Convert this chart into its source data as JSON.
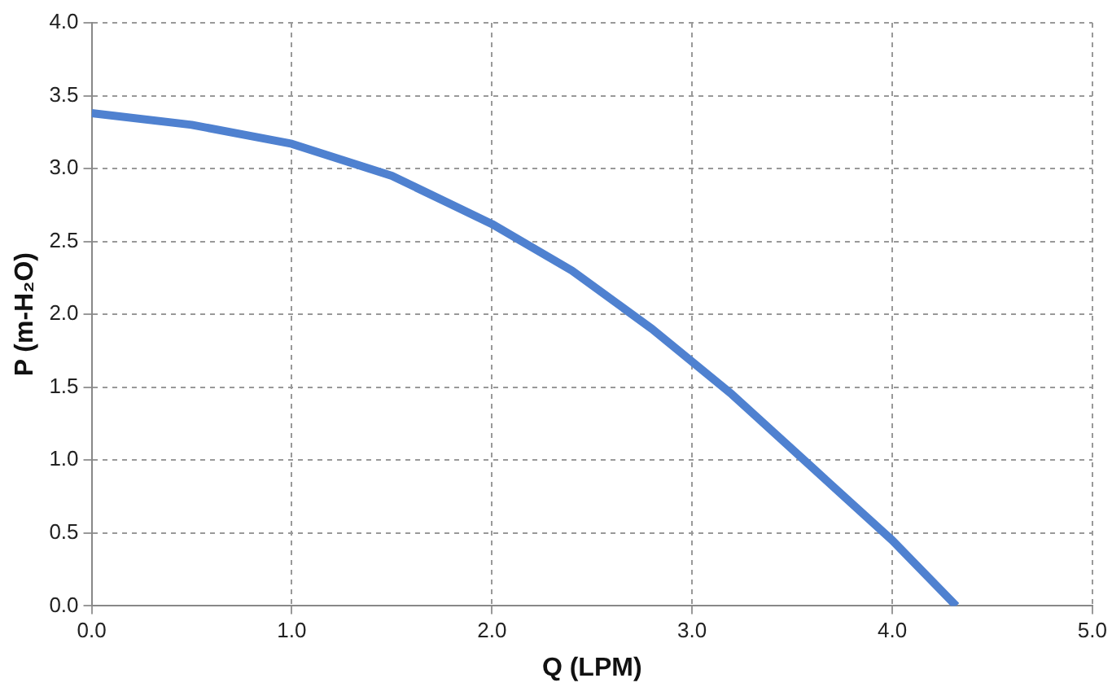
{
  "chart_data": {
    "type": "line",
    "xlabel": "Q (LPM)",
    "ylabel": "P (m-H₂O)",
    "x": [
      0,
      0.5,
      1.0,
      1.5,
      2.0,
      2.4,
      2.8,
      3.2,
      3.6,
      4.0,
      4.32
    ],
    "series": [
      {
        "color": "#4f81d0",
        "values": [
          3.38,
          3.3,
          3.17,
          2.95,
          2.62,
          2.3,
          1.9,
          1.45,
          0.95,
          0.45,
          0
        ]
      }
    ],
    "xlim": [
      0,
      5
    ],
    "xticks": [
      {
        "value": 0,
        "label": "0.0"
      },
      {
        "value": 1,
        "label": "1.0"
      },
      {
        "value": 2,
        "label": "2.0"
      },
      {
        "value": 3,
        "label": "3.0"
      },
      {
        "value": 4,
        "label": "4.0"
      },
      {
        "value": 5,
        "label": "5.0"
      }
    ],
    "ylim": [
      0,
      4
    ],
    "yticks": [
      {
        "value": 0,
        "label": "0.0"
      },
      {
        "value": 0.5,
        "label": "0.5"
      },
      {
        "value": 1,
        "label": "1.0"
      },
      {
        "value": 1.5,
        "label": "1.5"
      },
      {
        "value": 2,
        "label": "2.0"
      },
      {
        "value": 2.5,
        "label": "2.5"
      },
      {
        "value": 3,
        "label": "3.0"
      },
      {
        "value": 3.5,
        "label": "3.5"
      },
      {
        "value": 4,
        "label": "4.0"
      }
    ],
    "grid": true,
    "marker": "none",
    "line_style": "solid"
  }
}
